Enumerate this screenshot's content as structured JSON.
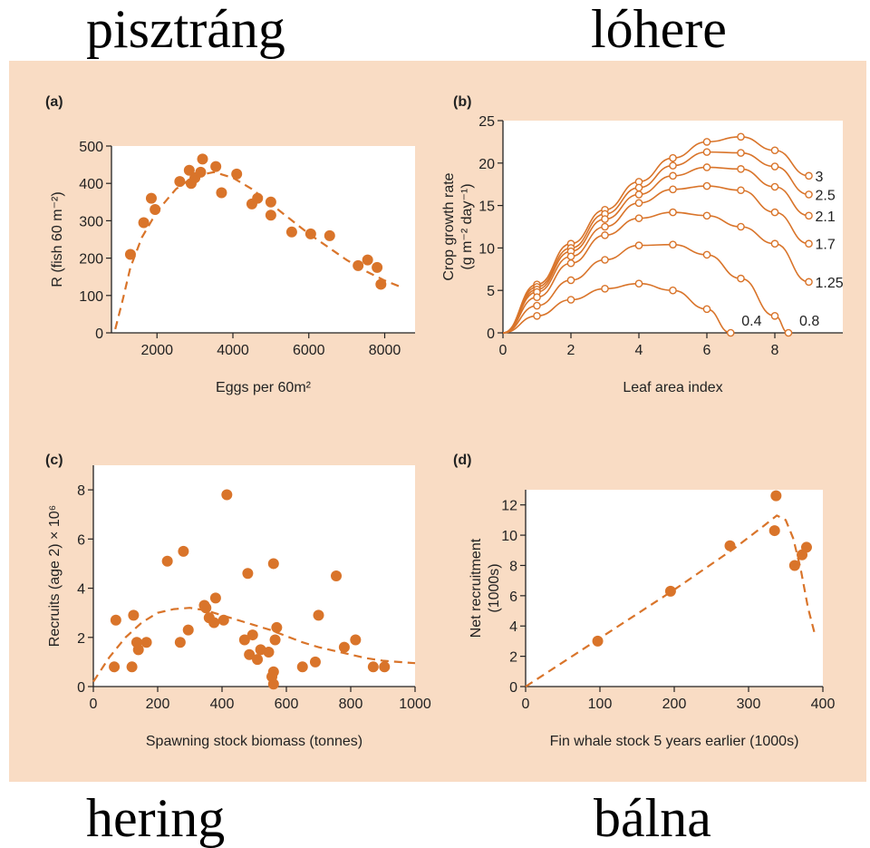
{
  "labels": {
    "top_left": "pisztráng",
    "top_right": "lóhere",
    "bottom_left": "hering",
    "bottom_right": "bálna"
  },
  "colors": {
    "background": "#f9dcc4",
    "marker": "#d9742a",
    "line": "#d9742a",
    "plot_bg": "#ffffff"
  },
  "chart_data": [
    {
      "id": "a",
      "panel_label": "(a)",
      "type": "scatter",
      "xlabel": "Eggs per 60m²",
      "ylabel": "R (fish 60 m⁻²)",
      "xlim": [
        800,
        8800
      ],
      "ylim": [
        0,
        500
      ],
      "xticks": [
        2000,
        4000,
        6000,
        8000
      ],
      "yticks": [
        0,
        100,
        200,
        300,
        400,
        500
      ],
      "points": [
        [
          1300,
          210
        ],
        [
          1650,
          295
        ],
        [
          1850,
          360
        ],
        [
          1950,
          330
        ],
        [
          2600,
          405
        ],
        [
          2850,
          435
        ],
        [
          2900,
          400
        ],
        [
          3000,
          415
        ],
        [
          3150,
          430
        ],
        [
          3200,
          465
        ],
        [
          3550,
          445
        ],
        [
          3700,
          375
        ],
        [
          4100,
          425
        ],
        [
          4500,
          345
        ],
        [
          4650,
          360
        ],
        [
          5000,
          350
        ],
        [
          5000,
          315
        ],
        [
          5550,
          270
        ],
        [
          6050,
          265
        ],
        [
          6550,
          260
        ],
        [
          7300,
          180
        ],
        [
          7550,
          195
        ],
        [
          7800,
          175
        ],
        [
          7900,
          130
        ]
      ],
      "curve": [
        [
          900,
          10
        ],
        [
          1100,
          90
        ],
        [
          1300,
          175
        ],
        [
          1600,
          255
        ],
        [
          2000,
          325
        ],
        [
          2500,
          385
        ],
        [
          3000,
          420
        ],
        [
          3500,
          430
        ],
        [
          4000,
          415
        ],
        [
          4500,
          385
        ],
        [
          5000,
          345
        ],
        [
          5500,
          305
        ],
        [
          6000,
          265
        ],
        [
          6500,
          230
        ],
        [
          7000,
          195
        ],
        [
          7500,
          165
        ],
        [
          8000,
          140
        ],
        [
          8500,
          120
        ]
      ]
    },
    {
      "id": "b",
      "panel_label": "(b)",
      "type": "line",
      "xlabel": "Leaf area index",
      "ylabel": "Crop growth rate (g m⁻² day⁻¹)",
      "xlim": [
        0,
        10
      ],
      "ylim": [
        0,
        25
      ],
      "xticks": [
        0,
        2,
        4,
        6,
        8
      ],
      "yticks": [
        0,
        5,
        10,
        15,
        20,
        25
      ],
      "series": [
        {
          "name": "3",
          "points": [
            [
              0,
              0
            ],
            [
              1,
              5.7
            ],
            [
              2,
              10.5
            ],
            [
              3,
              14.5
            ],
            [
              4,
              17.8
            ],
            [
              5,
              20.6
            ],
            [
              6,
              22.5
            ],
            [
              7,
              23.1
            ],
            [
              8,
              21.5
            ],
            [
              9,
              18.5
            ]
          ]
        },
        {
          "name": "2.5",
          "points": [
            [
              0,
              0
            ],
            [
              1,
              5.4
            ],
            [
              2,
              10
            ],
            [
              3,
              14
            ],
            [
              4,
              17.1
            ],
            [
              5,
              19.7
            ],
            [
              6,
              21.3
            ],
            [
              7,
              21.2
            ],
            [
              8,
              19.6
            ],
            [
              9,
              16.3
            ]
          ]
        },
        {
          "name": "2.1",
          "points": [
            [
              0,
              0
            ],
            [
              1,
              5.1
            ],
            [
              2,
              9.6
            ],
            [
              3,
              13.4
            ],
            [
              4,
              16.3
            ],
            [
              5,
              18.5
            ],
            [
              6,
              19.5
            ],
            [
              7,
              19.3
            ],
            [
              8,
              17.2
            ],
            [
              9,
              13.8
            ]
          ]
        },
        {
          "name": "1.7",
          "points": [
            [
              0,
              0
            ],
            [
              1,
              4.8
            ],
            [
              2,
              9
            ],
            [
              3,
              12.5
            ],
            [
              4,
              15.3
            ],
            [
              5,
              16.9
            ],
            [
              6,
              17.3
            ],
            [
              7,
              16.8
            ],
            [
              8,
              14.2
            ],
            [
              9,
              10.5
            ]
          ]
        },
        {
          "name": "1.25",
          "points": [
            [
              0,
              0
            ],
            [
              1,
              4.2
            ],
            [
              2,
              8.2
            ],
            [
              3,
              11.5
            ],
            [
              4,
              13.5
            ],
            [
              5,
              14.2
            ],
            [
              6,
              13.8
            ],
            [
              7,
              12.5
            ],
            [
              8,
              10.5
            ],
            [
              9,
              6
            ]
          ]
        },
        {
          "name": "0.8",
          "points": [
            [
              0,
              0
            ],
            [
              1,
              3.2
            ],
            [
              2,
              6.2
            ],
            [
              3,
              8.6
            ],
            [
              4,
              10.3
            ],
            [
              5,
              10.4
            ],
            [
              6,
              9.2
            ],
            [
              7,
              6.4
            ],
            [
              8,
              2
            ],
            [
              8.4,
              0
            ]
          ]
        },
        {
          "name": "0.4",
          "points": [
            [
              0,
              0
            ],
            [
              1,
              2
            ],
            [
              2,
              3.9
            ],
            [
              3,
              5.2
            ],
            [
              4,
              5.8
            ],
            [
              5,
              5
            ],
            [
              6,
              2.8
            ],
            [
              6.7,
              0
            ]
          ]
        }
      ]
    },
    {
      "id": "c",
      "panel_label": "(c)",
      "type": "scatter",
      "xlabel": "Spawning stock biomass (tonnes)",
      "ylabel": "Recruits (age 2) × 10⁶",
      "xlim": [
        0,
        1000
      ],
      "ylim": [
        0,
        9
      ],
      "xticks": [
        0,
        200,
        400,
        600,
        800,
        1000
      ],
      "yticks": [
        0,
        2,
        4,
        6,
        8
      ],
      "points": [
        [
          65,
          0.8
        ],
        [
          70,
          2.7
        ],
        [
          120,
          0.8
        ],
        [
          125,
          2.9
        ],
        [
          135,
          1.8
        ],
        [
          140,
          1.5
        ],
        [
          165,
          1.8
        ],
        [
          230,
          5.1
        ],
        [
          270,
          1.8
        ],
        [
          280,
          5.5
        ],
        [
          295,
          2.3
        ],
        [
          345,
          3.3
        ],
        [
          350,
          3.2
        ],
        [
          360,
          2.8
        ],
        [
          375,
          2.6
        ],
        [
          380,
          3.6
        ],
        [
          405,
          2.7
        ],
        [
          415,
          7.8
        ],
        [
          470,
          1.9
        ],
        [
          480,
          4.6
        ],
        [
          485,
          1.3
        ],
        [
          495,
          2.1
        ],
        [
          510,
          1.1
        ],
        [
          520,
          1.5
        ],
        [
          545,
          1.4
        ],
        [
          555,
          0.4
        ],
        [
          560,
          5
        ],
        [
          560,
          0.6
        ],
        [
          560,
          0.1
        ],
        [
          565,
          1.9
        ],
        [
          570,
          2.4
        ],
        [
          650,
          0.8
        ],
        [
          690,
          1
        ],
        [
          700,
          2.9
        ],
        [
          755,
          4.5
        ],
        [
          780,
          1.6
        ],
        [
          815,
          1.9
        ],
        [
          870,
          0.8
        ],
        [
          905,
          0.8
        ]
      ],
      "curve": [
        [
          0,
          0.2
        ],
        [
          50,
          1.2
        ],
        [
          100,
          2
        ],
        [
          150,
          2.6
        ],
        [
          200,
          3
        ],
        [
          250,
          3.15
        ],
        [
          300,
          3.2
        ],
        [
          350,
          3.1
        ],
        [
          400,
          2.9
        ],
        [
          450,
          2.7
        ],
        [
          500,
          2.5
        ],
        [
          550,
          2.3
        ],
        [
          600,
          2.05
        ],
        [
          650,
          1.8
        ],
        [
          700,
          1.6
        ],
        [
          750,
          1.45
        ],
        [
          800,
          1.3
        ],
        [
          850,
          1.15
        ],
        [
          900,
          1.05
        ],
        [
          950,
          1
        ],
        [
          1000,
          0.95
        ]
      ]
    },
    {
      "id": "d",
      "panel_label": "(d)",
      "type": "scatter",
      "xlabel": "Fin whale stock 5 years earlier (1000s)",
      "ylabel": "Net recruitment (1000s)",
      "xlim": [
        0,
        400
      ],
      "ylim": [
        0,
        13
      ],
      "xticks": [
        0,
        100,
        200,
        300,
        400
      ],
      "yticks": [
        0,
        2,
        4,
        6,
        8,
        10,
        12
      ],
      "points": [
        [
          97,
          3
        ],
        [
          195,
          6.3
        ],
        [
          275,
          9.3
        ],
        [
          335,
          10.3
        ],
        [
          337,
          12.6
        ],
        [
          362,
          8
        ],
        [
          372,
          8.7
        ],
        [
          378,
          9.2
        ]
      ],
      "curve": [
        [
          0,
          0
        ],
        [
          100,
          3.2
        ],
        [
          200,
          6.4
        ],
        [
          280,
          9.1
        ],
        [
          320,
          10.6
        ],
        [
          338,
          11.3
        ],
        [
          350,
          11
        ],
        [
          360,
          9.8
        ],
        [
          370,
          7.8
        ],
        [
          380,
          5.2
        ],
        [
          390,
          3.3
        ]
      ]
    }
  ],
  "right_labels": [
    "3",
    "2.5",
    "2.1",
    "1.7",
    "1.25"
  ],
  "bottom_labels": [
    "0.4",
    "0.8"
  ]
}
